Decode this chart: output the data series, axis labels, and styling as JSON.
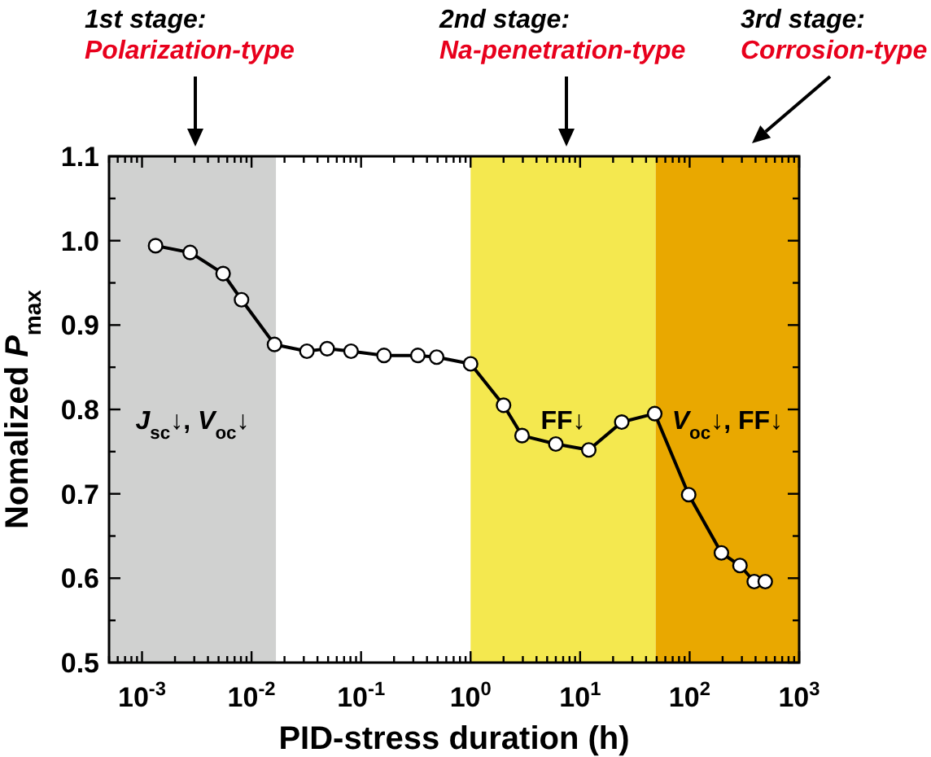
{
  "chart_data": {
    "type": "line",
    "xlabel": "PID-stress duration (h)",
    "ylabel": "Nomalized P$_{max}$",
    "log": "x",
    "marker": "circle",
    "line_style": "solid",
    "xlim": [
      0.0005,
      1000
    ],
    "xticks": [
      {
        "value": 0.0005,
        "label": null
      },
      {
        "value": 0.0006,
        "label": null
      },
      {
        "value": 0.0007,
        "label": null
      },
      {
        "value": 0.0008,
        "label": null
      },
      {
        "value": 0.0009,
        "label": null
      },
      {
        "value": 0.001,
        "label": "10$^{-3}$"
      },
      {
        "value": 0.002,
        "label": null
      },
      {
        "value": 0.003,
        "label": null
      },
      {
        "value": 0.004,
        "label": null
      },
      {
        "value": 0.005,
        "label": null
      },
      {
        "value": 0.006,
        "label": null
      },
      {
        "value": 0.007,
        "label": null
      },
      {
        "value": 0.008,
        "label": null
      },
      {
        "value": 0.009,
        "label": null
      },
      {
        "value": 0.01,
        "label": "10$^{-2}$"
      },
      {
        "value": 0.02,
        "label": null
      },
      {
        "value": 0.03,
        "label": null
      },
      {
        "value": 0.04,
        "label": null
      },
      {
        "value": 0.05,
        "label": null
      },
      {
        "value": 0.06,
        "label": null
      },
      {
        "value": 0.07,
        "label": null
      },
      {
        "value": 0.08,
        "label": null
      },
      {
        "value": 0.09,
        "label": null
      },
      {
        "value": 0.1,
        "label": "10$^{-1}$"
      },
      {
        "value": 0.2,
        "label": null
      },
      {
        "value": 0.3,
        "label": null
      },
      {
        "value": 0.4,
        "label": null
      },
      {
        "value": 0.5,
        "label": null
      },
      {
        "value": 0.6,
        "label": null
      },
      {
        "value": 0.7,
        "label": null
      },
      {
        "value": 0.8,
        "label": null
      },
      {
        "value": 0.9,
        "label": null
      },
      {
        "value": 1,
        "label": "10$^{0}$"
      },
      {
        "value": 2,
        "label": null
      },
      {
        "value": 3,
        "label": null
      },
      {
        "value": 4,
        "label": null
      },
      {
        "value": 5,
        "label": null
      },
      {
        "value": 6,
        "label": null
      },
      {
        "value": 7,
        "label": null
      },
      {
        "value": 8,
        "label": null
      },
      {
        "value": 9,
        "label": null
      },
      {
        "value": 10,
        "label": "10$^{1}$"
      },
      {
        "value": 20,
        "label": null
      },
      {
        "value": 30,
        "label": null
      },
      {
        "value": 40,
        "label": null
      },
      {
        "value": 50,
        "label": null
      },
      {
        "value": 60,
        "label": null
      },
      {
        "value": 70,
        "label": null
      },
      {
        "value": 80,
        "label": null
      },
      {
        "value": 90,
        "label": null
      },
      {
        "value": 100,
        "label": "10$^{2}$"
      },
      {
        "value": 200,
        "label": null
      },
      {
        "value": 300,
        "label": null
      },
      {
        "value": 400,
        "label": null
      },
      {
        "value": 500,
        "label": null
      },
      {
        "value": 600,
        "label": null
      },
      {
        "value": 700,
        "label": null
      },
      {
        "value": 800,
        "label": null
      },
      {
        "value": 900,
        "label": null
      },
      {
        "value": 1000,
        "label": "10$^{3}$"
      }
    ],
    "ylim": [
      0.5,
      1.1
    ],
    "yticks": [
      {
        "value": 0.5,
        "label": "0.5"
      },
      {
        "value": 0.55,
        "label": null
      },
      {
        "value": 0.6,
        "label": "0.6"
      },
      {
        "value": 0.65,
        "label": null
      },
      {
        "value": 0.7,
        "label": "0.7"
      },
      {
        "value": 0.75,
        "label": null
      },
      {
        "value": 0.8,
        "label": "0.8"
      },
      {
        "value": 0.85,
        "label": null
      },
      {
        "value": 0.9,
        "label": "0.9"
      },
      {
        "value": 0.95,
        "label": null
      },
      {
        "value": 1.0,
        "label": "1.0"
      },
      {
        "value": 1.05,
        "label": null
      },
      {
        "value": 1.1,
        "label": "1.1"
      }
    ],
    "bands": [
      {
        "axis": "x",
        "from": 0.0005,
        "to": 0.0167,
        "label": "J$_{sc}$↓, V$_{oc}$↓",
        "color": "#d0d1d0"
      },
      {
        "axis": "x",
        "from": 1,
        "to": 49,
        "label": "FF↓",
        "color": "#f4e84f"
      },
      {
        "axis": "x",
        "from": 49,
        "to": 1000,
        "label": "V$_{oc}$↓, FF↓",
        "color": "#e9a800"
      }
    ],
    "annotations": [
      "1st stage:\nPolarization-type",
      "2nd stage:\nNa-penetration-type",
      "3rd stage:\nCorrosion-type"
    ],
    "x": [
      0.00133,
      0.00275,
      0.0055,
      0.0081,
      0.0162,
      0.032,
      0.049,
      0.081,
      0.162,
      0.33,
      0.49,
      1,
      2,
      2.95,
      6,
      12,
      24,
      48,
      98,
      195,
      288,
      389,
      490
    ],
    "series": [
      {
        "color": "#000000",
        "values": [
          0.994,
          0.986,
          0.961,
          0.93,
          0.877,
          0.869,
          0.872,
          0.869,
          0.864,
          0.864,
          0.862,
          0.854,
          0.805,
          0.769,
          0.759,
          0.752,
          0.785,
          0.795,
          0.699,
          0.63,
          0.615,
          0.596,
          0.596
        ]
      }
    ]
  }
}
